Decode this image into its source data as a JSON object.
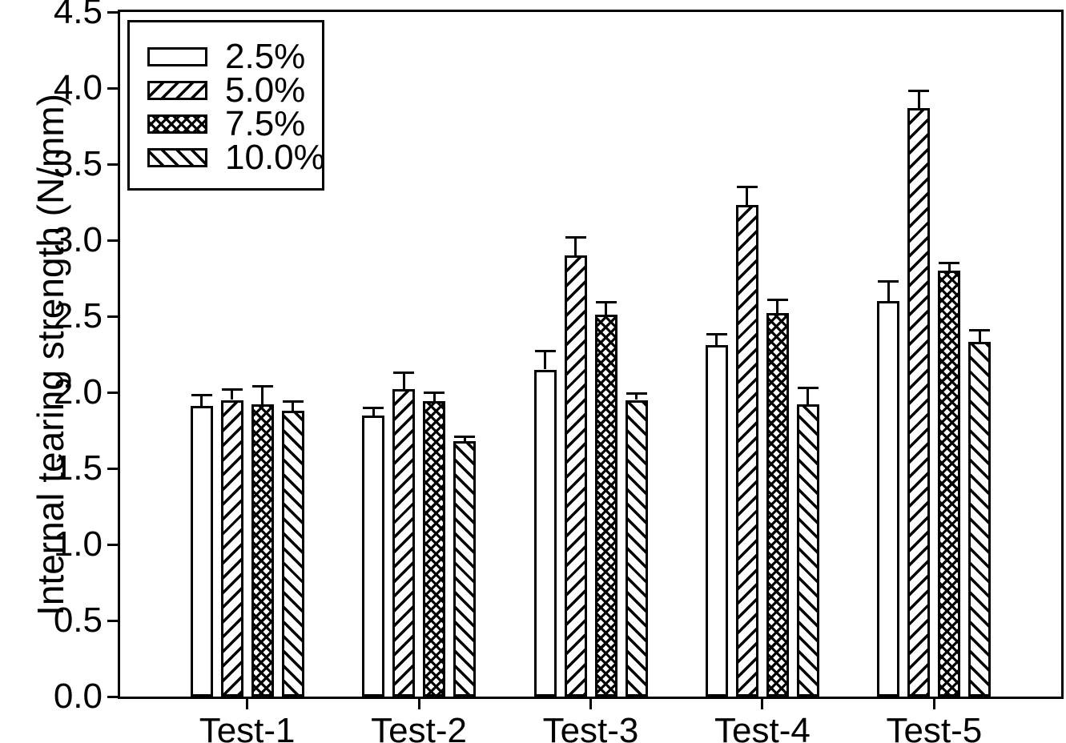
{
  "chart_data": {
    "type": "bar",
    "title": "",
    "xlabel": "",
    "ylabel": "Internal tearing strength (N/mm)",
    "ylim": [
      0,
      4.5
    ],
    "ytick_step": 0.5,
    "yticklabels": [
      "0.0",
      "0.5",
      "1.0",
      "1.5",
      "2.0",
      "2.5",
      "3.0",
      "3.5",
      "4.0",
      "4.5"
    ],
    "categories": [
      "Test-1",
      "Test-2",
      "Test-3",
      "Test-4",
      "Test-5"
    ],
    "series": [
      {
        "name": "2.5%",
        "pattern": "solid-white",
        "values": [
          1.91,
          1.85,
          2.15,
          2.31,
          2.6
        ],
        "errors": [
          0.07,
          0.05,
          0.12,
          0.07,
          0.13
        ]
      },
      {
        "name": "5.0%",
        "pattern": "forward-diagonal-hatch",
        "values": [
          1.95,
          2.02,
          2.9,
          3.23,
          3.87
        ],
        "errors": [
          0.07,
          0.11,
          0.12,
          0.12,
          0.11
        ]
      },
      {
        "name": "7.5%",
        "pattern": "crosshatch",
        "values": [
          1.92,
          1.94,
          2.51,
          2.52,
          2.8
        ],
        "errors": [
          0.12,
          0.06,
          0.08,
          0.09,
          0.05
        ]
      },
      {
        "name": "10.0%",
        "pattern": "backward-diagonal-hatch",
        "values": [
          1.88,
          1.68,
          1.95,
          1.92,
          2.33
        ],
        "errors": [
          0.06,
          0.03,
          0.04,
          0.11,
          0.08
        ]
      }
    ],
    "error_bars": "upper-only",
    "legend_position": "upper-left",
    "grid": false,
    "colors": {
      "foreground": "#000000",
      "background": "#ffffff"
    }
  }
}
